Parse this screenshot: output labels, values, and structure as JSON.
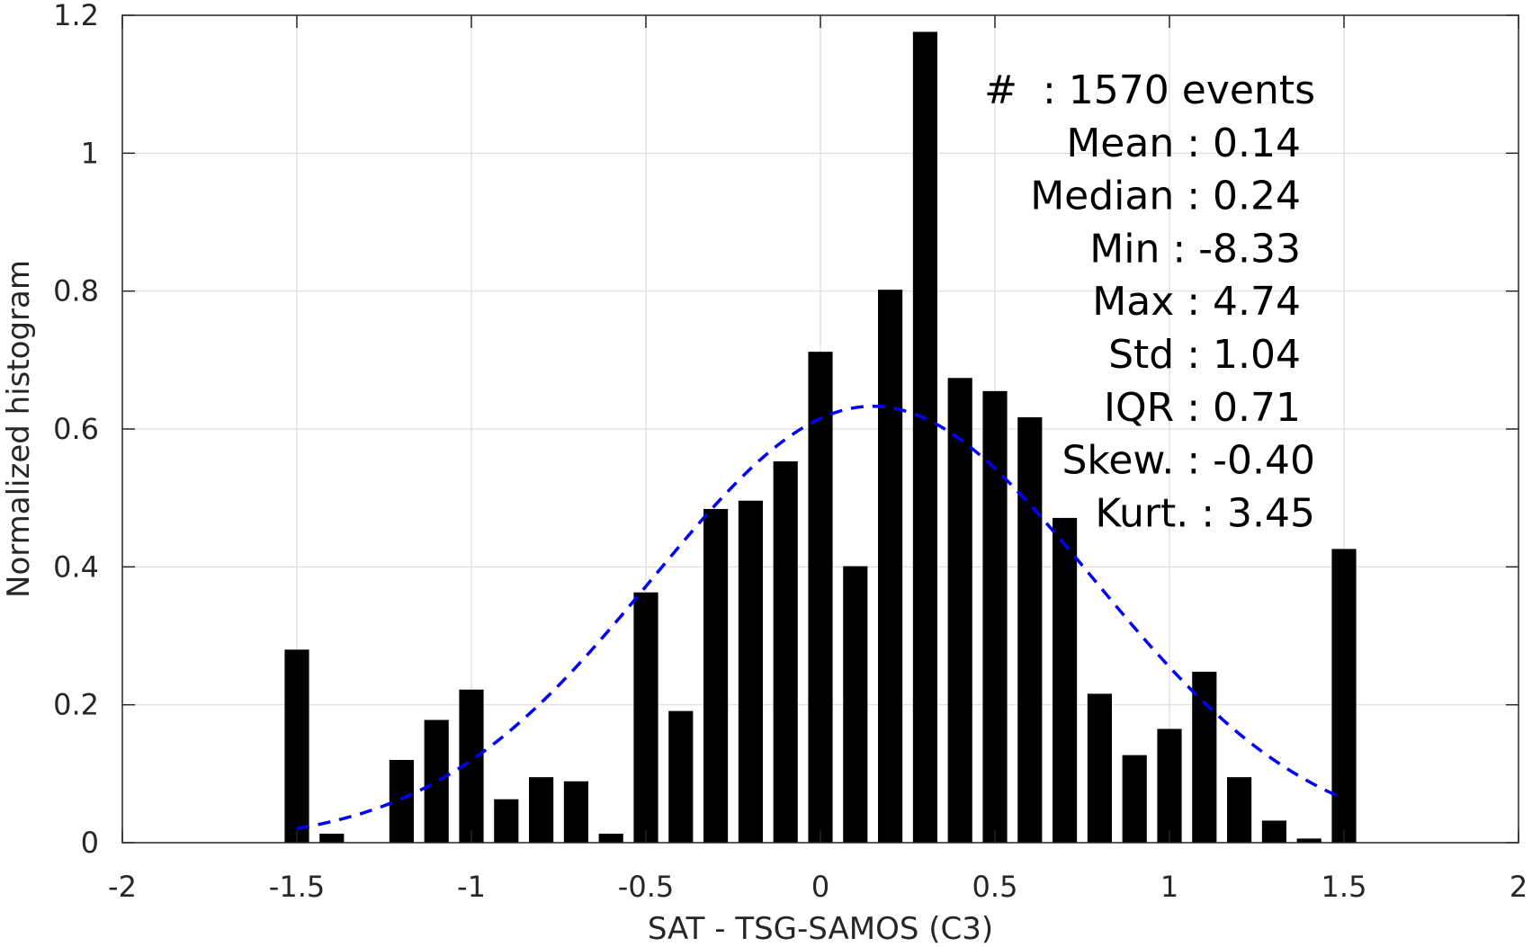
{
  "chart_data": {
    "type": "bar",
    "xlabel": "SAT - TSG-SAMOS (C3)",
    "ylabel": "Normalized histogram",
    "xlim": [
      -2,
      2
    ],
    "ylim": [
      0,
      1.2
    ],
    "xticks": [
      -2,
      -1.5,
      -1,
      -0.5,
      0,
      0.5,
      1,
      1.5,
      2
    ],
    "xtick_labels": [
      "-2",
      "-1.5",
      "-1",
      "-0.5",
      "0",
      "0.5",
      "1",
      "1.5",
      "2"
    ],
    "yticks": [
      0,
      0.2,
      0.4,
      0.6,
      0.8,
      1,
      1.2
    ],
    "ytick_labels": [
      "0",
      "0.2",
      "0.4",
      "0.6",
      "0.8",
      "1",
      "1.2"
    ],
    "grid": true,
    "bar_color": "#000000",
    "bars": {
      "x": [
        -1.5,
        -1.4,
        -1.3,
        -1.2,
        -1.1,
        -1.0,
        -0.9,
        -0.8,
        -0.7,
        -0.6,
        -0.5,
        -0.4,
        -0.3,
        -0.2,
        -0.1,
        0.0,
        0.1,
        0.2,
        0.3,
        0.4,
        0.5,
        0.6,
        0.7,
        0.8,
        0.9,
        1.0,
        1.1,
        1.2,
        1.3,
        1.4,
        1.5
      ],
      "values": [
        0.28,
        0.013,
        0.0,
        0.12,
        0.178,
        0.222,
        0.063,
        0.095,
        0.089,
        0.013,
        0.363,
        0.191,
        0.484,
        0.496,
        0.553,
        0.712,
        0.401,
        0.802,
        1.176,
        0.674,
        0.655,
        0.617,
        0.471,
        0.216,
        0.127,
        0.165,
        0.248,
        0.095,
        0.032,
        0.006,
        0.426
      ],
      "width": 0.07
    },
    "fit_curve": {
      "style": "dashed",
      "color": "#0000ff",
      "mean": 0.15,
      "std": 0.63,
      "amplitude": 0.633,
      "x_range": [
        -1.5,
        1.5
      ]
    },
    "stats": [
      {
        "label": "#",
        "sep": ":",
        "value": "1570 events"
      },
      {
        "label": "Mean",
        "sep": ":",
        "value": "0.14"
      },
      {
        "label": "Median",
        "sep": ":",
        "value": "0.24"
      },
      {
        "label": "Min",
        "sep": ":",
        "value": "-8.33"
      },
      {
        "label": "Max",
        "sep": ":",
        "value": "4.74"
      },
      {
        "label": "Std",
        "sep": ":",
        "value": "1.04"
      },
      {
        "label": "IQR",
        "sep": ":",
        "value": "0.71"
      },
      {
        "label": "Skew.",
        "sep": ":",
        "value": "-0.40"
      },
      {
        "label": "Kurt.",
        "sep": ":",
        "value": "3.45"
      }
    ]
  }
}
